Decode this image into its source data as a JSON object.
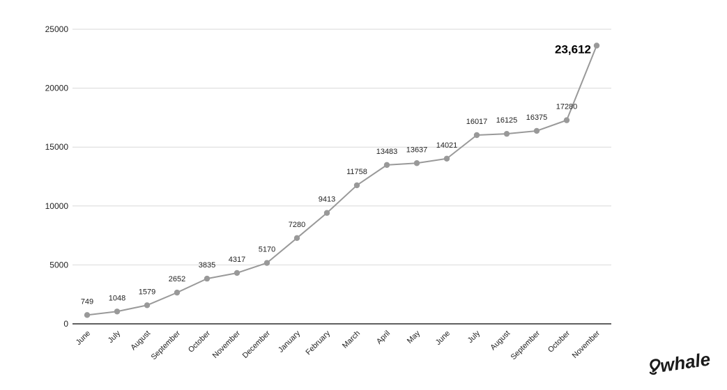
{
  "chart_data": {
    "type": "line",
    "title": "",
    "xlabel": "",
    "ylabel": "",
    "ylim": [
      0,
      25000
    ],
    "yticks": [
      0,
      5000,
      10000,
      15000,
      20000,
      25000
    ],
    "categories": [
      "June",
      "July",
      "August",
      "September",
      "October",
      "November",
      "December",
      "January",
      "February",
      "March",
      "April",
      "May",
      "June",
      "July",
      "August",
      "September",
      "October",
      "November"
    ],
    "series": [
      {
        "values": [
          749,
          1048,
          1579,
          2652,
          3835,
          4317,
          5170,
          7280,
          9413,
          11758,
          13483,
          13637,
          14021,
          16017,
          16125,
          16375,
          17280,
          23612
        ]
      }
    ],
    "data_labels": [
      "749",
      "1048",
      "1579",
      "2652",
      "3835",
      "4317",
      "5170",
      "7280",
      "9413",
      "11758",
      "13483",
      "13637",
      "14021",
      "16017",
      "16125",
      "16375",
      "17280",
      "23,612"
    ],
    "grid": true,
    "legend": "none",
    "colors": {
      "line": "#999999",
      "marker": "#999999",
      "grid": "#d9d9d9",
      "axis": "#000000"
    }
  },
  "logo": {
    "text": "Swhale",
    "icon": "swhale-logo-icon"
  }
}
